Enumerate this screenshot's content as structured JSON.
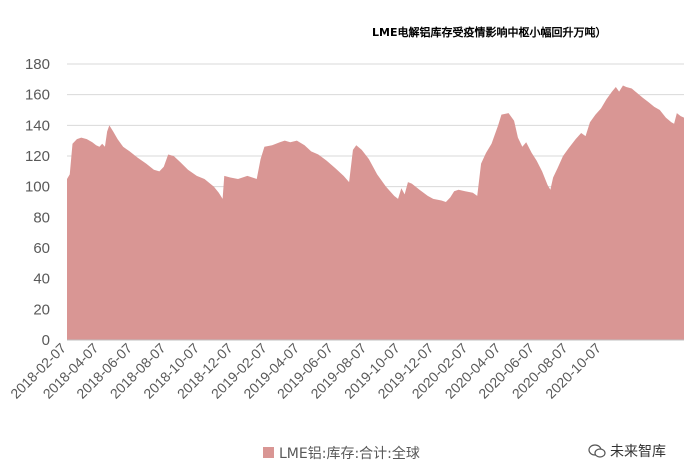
{
  "chart_data": {
    "type": "area",
    "title": "LME电解铝库存受疫情影响中枢小幅回升万吨）",
    "xlabel": "",
    "ylabel": "",
    "ylim": [
      0,
      180
    ],
    "y_ticks": [
      0,
      20,
      40,
      60,
      80,
      100,
      120,
      140,
      160,
      180
    ],
    "x_ticks": [
      "2018-02-07",
      "2018-04-07",
      "2018-06-07",
      "2018-08-07",
      "2018-10-07",
      "2018-12-07",
      "2019-02-07",
      "2019-04-07",
      "2019-06-07",
      "2019-08-07",
      "2019-10-07",
      "2019-12-07",
      "2020-02-07",
      "2020-04-07",
      "2020-06-07",
      "2020-08-07",
      "2020-10-07"
    ],
    "grid": true,
    "legend_position": "bottom",
    "color": "#d99694",
    "series": [
      {
        "name": "LME铝:库存:合计:全球",
        "points": [
          [
            "2018-02-07",
            105
          ],
          [
            "2018-02-12",
            108
          ],
          [
            "2018-02-17",
            128
          ],
          [
            "2018-02-25",
            131
          ],
          [
            "2018-03-05",
            132
          ],
          [
            "2018-03-15",
            131
          ],
          [
            "2018-03-25",
            129
          ],
          [
            "2018-04-01",
            127
          ],
          [
            "2018-04-07",
            126
          ],
          [
            "2018-04-12",
            128
          ],
          [
            "2018-04-17",
            126
          ],
          [
            "2018-04-21",
            136
          ],
          [
            "2018-04-25",
            140
          ],
          [
            "2018-05-02",
            136
          ],
          [
            "2018-05-10",
            131
          ],
          [
            "2018-05-20",
            126
          ],
          [
            "2018-06-01",
            123
          ],
          [
            "2018-06-15",
            119
          ],
          [
            "2018-07-01",
            115
          ],
          [
            "2018-07-15",
            111
          ],
          [
            "2018-07-25",
            110
          ],
          [
            "2018-08-02",
            113
          ],
          [
            "2018-08-10",
            121
          ],
          [
            "2018-08-20",
            120
          ],
          [
            "2018-09-01",
            116
          ],
          [
            "2018-09-15",
            111
          ],
          [
            "2018-10-01",
            107
          ],
          [
            "2018-10-15",
            105
          ],
          [
            "2018-11-01",
            100
          ],
          [
            "2018-11-10",
            96
          ],
          [
            "2018-11-17",
            92
          ],
          [
            "2018-11-20",
            107
          ],
          [
            "2018-12-01",
            106
          ],
          [
            "2018-12-15",
            105
          ],
          [
            "2019-01-01",
            107
          ],
          [
            "2019-01-10",
            106
          ],
          [
            "2019-01-18",
            105
          ],
          [
            "2019-01-25",
            118
          ],
          [
            "2019-02-01",
            126
          ],
          [
            "2019-02-15",
            127
          ],
          [
            "2019-03-01",
            129
          ],
          [
            "2019-03-10",
            130
          ],
          [
            "2019-03-20",
            129
          ],
          [
            "2019-04-01",
            130
          ],
          [
            "2019-04-15",
            127
          ],
          [
            "2019-04-27",
            123
          ],
          [
            "2019-05-10",
            121
          ],
          [
            "2019-05-25",
            117
          ],
          [
            "2019-06-10",
            112
          ],
          [
            "2019-06-25",
            107
          ],
          [
            "2019-07-05",
            103
          ],
          [
            "2019-07-12",
            124
          ],
          [
            "2019-07-18",
            127
          ],
          [
            "2019-07-28",
            124
          ],
          [
            "2019-08-10",
            118
          ],
          [
            "2019-08-25",
            108
          ],
          [
            "2019-09-10",
            100
          ],
          [
            "2019-09-25",
            94
          ],
          [
            "2019-10-02",
            92
          ],
          [
            "2019-10-08",
            99
          ],
          [
            "2019-10-14",
            95
          ],
          [
            "2019-10-20",
            103
          ],
          [
            "2019-10-27",
            102
          ],
          [
            "2019-11-10",
            98
          ],
          [
            "2019-11-25",
            94
          ],
          [
            "2019-12-05",
            92
          ],
          [
            "2019-12-20",
            91
          ],
          [
            "2019-12-28",
            90
          ],
          [
            "2020-01-05",
            93
          ],
          [
            "2020-01-12",
            97
          ],
          [
            "2020-01-20",
            98
          ],
          [
            "2020-02-01",
            97
          ],
          [
            "2020-02-15",
            96
          ],
          [
            "2020-02-23",
            94
          ],
          [
            "2020-03-01",
            115
          ],
          [
            "2020-03-10",
            122
          ],
          [
            "2020-03-20",
            128
          ],
          [
            "2020-04-01",
            140
          ],
          [
            "2020-04-07",
            147
          ],
          [
            "2020-04-20",
            148
          ],
          [
            "2020-04-30",
            143
          ],
          [
            "2020-05-07",
            132
          ],
          [
            "2020-05-15",
            126
          ],
          [
            "2020-05-22",
            129
          ],
          [
            "2020-06-01",
            122
          ],
          [
            "2020-06-10",
            117
          ],
          [
            "2020-06-20",
            110
          ],
          [
            "2020-06-30",
            101
          ],
          [
            "2020-07-05",
            98
          ],
          [
            "2020-07-10",
            106
          ],
          [
            "2020-07-18",
            112
          ],
          [
            "2020-07-28",
            120
          ],
          [
            "2020-08-07",
            125
          ],
          [
            "2020-08-20",
            131
          ],
          [
            "2020-08-30",
            135
          ],
          [
            "2020-09-07",
            133
          ],
          [
            "2020-09-15",
            142
          ],
          [
            "2020-09-25",
            147
          ],
          [
            "2020-10-05",
            151
          ],
          [
            "2020-10-15",
            157
          ],
          [
            "2020-10-25",
            162
          ],
          [
            "2020-11-01",
            165
          ],
          [
            "2020-11-07",
            162
          ],
          [
            "2020-11-14",
            166
          ],
          [
            "2020-11-20",
            165
          ],
          [
            "2020-11-30",
            164
          ],
          [
            "2020-12-10",
            161
          ],
          [
            "2020-12-20",
            158
          ],
          [
            "2020-12-31",
            155
          ],
          [
            "2021-01-10",
            152
          ],
          [
            "2021-01-20",
            150
          ],
          [
            "2021-01-31",
            145
          ],
          [
            "2021-02-10",
            142
          ],
          [
            "2021-02-15",
            141
          ],
          [
            "2021-02-20",
            148
          ],
          [
            "2021-02-27",
            146
          ],
          [
            "2021-03-05",
            145
          ]
        ]
      }
    ]
  },
  "watermark": {
    "text": "未来智库",
    "icon": "wechat-logo-icon"
  }
}
